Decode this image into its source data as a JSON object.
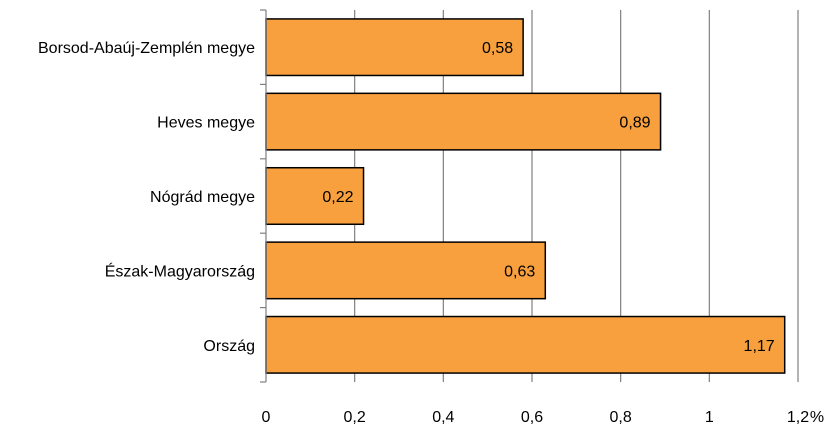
{
  "chart_data": {
    "type": "bar",
    "orientation": "horizontal",
    "categories": [
      "Borsod-Abaúj-Zemplén megye",
      "Heves megye",
      "Nógrád megye",
      "Észak-Magyarország",
      "Ország"
    ],
    "values": [
      0.58,
      0.89,
      0.22,
      0.63,
      1.17
    ],
    "value_labels": [
      "0,58",
      "0,89",
      "0,22",
      "0,63",
      "1,17"
    ],
    "x_ticks": [
      0,
      0.2,
      0.4,
      0.6,
      0.8,
      1,
      1.2
    ],
    "x_tick_labels": [
      "0",
      "0,2",
      "0,4",
      "0,6",
      "0,8",
      "1",
      "1,2"
    ],
    "xlim": [
      0,
      1.2
    ],
    "unit": "%",
    "grid": true,
    "legend": "none",
    "bar_color": "#F7A03D",
    "bar_edge_color": "#000000",
    "grid_color": "#808080"
  }
}
